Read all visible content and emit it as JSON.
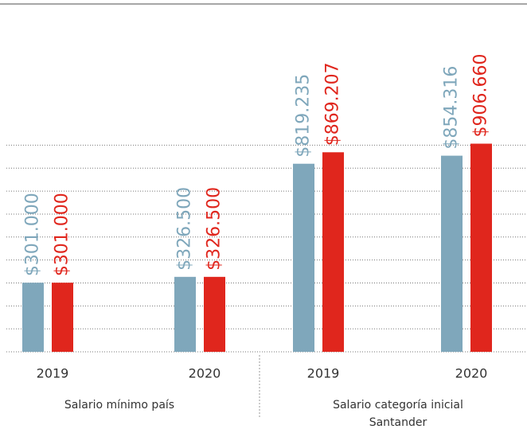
{
  "chart_data": {
    "type": "bar",
    "categories": [
      "2019",
      "2020",
      "2019",
      "2020"
    ],
    "group_labels": [
      "Salario mínimo país",
      "Salario categoría inicial Santander"
    ],
    "series": [
      {
        "color": "#7fa7bb",
        "values": [
          301000,
          326500,
          819235,
          854316
        ],
        "value_labels": [
          "$301.000",
          "$326.500",
          "$819.235",
          "$854.316"
        ]
      },
      {
        "color": "#e0261d",
        "values": [
          301000,
          326500,
          869207,
          906660
        ],
        "value_labels": [
          "$301.000",
          "$326.500",
          "$869.207",
          "$906.660"
        ]
      }
    ],
    "ylim": [
      0,
      950000
    ],
    "yticks": [
      0,
      100000,
      200000,
      300000,
      400000,
      500000,
      600000,
      700000,
      800000,
      900000
    ],
    "grid": true
  }
}
